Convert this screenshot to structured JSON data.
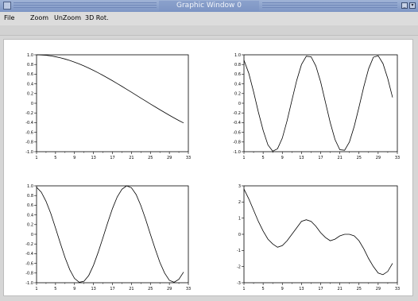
{
  "window": {
    "title": "Graphic Window 0",
    "controls": [
      "_",
      "▾",
      "✕"
    ]
  },
  "menu": {
    "items": [
      "File",
      "Zoom",
      "UnZoom",
      "3D Rot."
    ]
  },
  "chart_data": [
    {
      "type": "line",
      "xlim": [
        1,
        33
      ],
      "ylim": [
        -1.0,
        1.0
      ],
      "xticks": [
        "1",
        "5",
        "9",
        "13",
        "17",
        "21",
        "25",
        "29",
        "33"
      ],
      "yticks": [
        "1.0",
        "0.8",
        "0.6",
        "0.4",
        "0.2",
        "0",
        "-0.2",
        "-0.4",
        "-0.6",
        "-0.8",
        "-1.0"
      ],
      "x": [
        1,
        2,
        3,
        4,
        5,
        6,
        7,
        8,
        9,
        10,
        11,
        12,
        13,
        14,
        15,
        16,
        17,
        18,
        19,
        20,
        21,
        22,
        23,
        24,
        25,
        26,
        27,
        28,
        29,
        30,
        31,
        32
      ],
      "y": [
        1.0,
        0.997,
        0.99,
        0.977,
        0.96,
        0.939,
        0.913,
        0.883,
        0.849,
        0.812,
        0.77,
        0.726,
        0.678,
        0.628,
        0.576,
        0.521,
        0.465,
        0.407,
        0.348,
        0.288,
        0.228,
        0.167,
        0.106,
        0.046,
        -0.015,
        -0.074,
        -0.133,
        -0.191,
        -0.248,
        -0.303,
        -0.356,
        -0.407
      ],
      "grid": false
    },
    {
      "type": "line",
      "xlim": [
        1,
        33
      ],
      "ylim": [
        -1.0,
        1.0
      ],
      "xticks": [
        "1",
        "5",
        "9",
        "13",
        "17",
        "21",
        "25",
        "29",
        "33"
      ],
      "yticks": [
        "1.0",
        "0.8",
        "0.6",
        "0.4",
        "0.2",
        "0",
        "-0.2",
        "-0.4",
        "-0.6",
        "-0.8",
        "-1.0"
      ],
      "x": [
        1,
        2,
        3,
        4,
        5,
        6,
        7,
        8,
        9,
        10,
        11,
        12,
        13,
        14,
        15,
        16,
        17,
        18,
        19,
        20,
        21,
        22,
        23,
        24,
        25,
        26,
        27,
        28,
        29,
        30,
        31,
        32
      ],
      "y": [
        0.89,
        0.62,
        0.24,
        -0.18,
        -0.56,
        -0.86,
        -0.99,
        -0.94,
        -0.72,
        -0.36,
        0.06,
        0.47,
        0.8,
        0.97,
        0.96,
        0.77,
        0.44,
        0.02,
        -0.4,
        -0.75,
        -0.96,
        -0.97,
        -0.8,
        -0.48,
        -0.08,
        0.34,
        0.71,
        0.95,
        0.98,
        0.82,
        0.51,
        0.12
      ],
      "grid": false
    },
    {
      "type": "line",
      "xlim": [
        1,
        33
      ],
      "ylim": [
        -1.0,
        1.0
      ],
      "xticks": [
        "1",
        "5",
        "9",
        "13",
        "17",
        "21",
        "25",
        "29",
        "33"
      ],
      "yticks": [
        "1.0",
        "0.8",
        "0.6",
        "0.4",
        "0.2",
        "0",
        "-0.2",
        "-0.4",
        "-0.6",
        "-0.8",
        "-1.0"
      ],
      "x": [
        1,
        2,
        3,
        4,
        5,
        6,
        7,
        8,
        9,
        10,
        11,
        12,
        13,
        14,
        15,
        16,
        17,
        18,
        19,
        20,
        21,
        22,
        23,
        24,
        25,
        26,
        27,
        28,
        29,
        30,
        31,
        32
      ],
      "y": [
        0.97,
        0.87,
        0.68,
        0.43,
        0.13,
        -0.18,
        -0.48,
        -0.73,
        -0.91,
        -0.99,
        -0.97,
        -0.85,
        -0.64,
        -0.37,
        -0.07,
        0.24,
        0.53,
        0.77,
        0.93,
        1.0,
        0.96,
        0.82,
        0.59,
        0.31,
        0.0,
        -0.3,
        -0.58,
        -0.8,
        -0.95,
        -0.99,
        -0.93,
        -0.78
      ],
      "grid": false
    },
    {
      "type": "line",
      "xlim": [
        1,
        33
      ],
      "ylim": [
        -3,
        3
      ],
      "xticks": [
        "1",
        "5",
        "9",
        "13",
        "17",
        "21",
        "25",
        "29",
        "33"
      ],
      "yticks": [
        "3",
        "2",
        "1",
        "0",
        "-1",
        "-2",
        "-3"
      ],
      "x": [
        1,
        2,
        3,
        4,
        5,
        6,
        7,
        8,
        9,
        10,
        11,
        12,
        13,
        14,
        15,
        16,
        17,
        18,
        19,
        20,
        21,
        22,
        23,
        24,
        25,
        26,
        27,
        28,
        29,
        30,
        31,
        32
      ],
      "y": [
        2.8,
        2.2,
        1.5,
        0.8,
        0.2,
        -0.3,
        -0.6,
        -0.8,
        -0.7,
        -0.4,
        0.0,
        0.4,
        0.8,
        0.9,
        0.8,
        0.5,
        0.1,
        -0.2,
        -0.4,
        -0.3,
        -0.1,
        0.0,
        0.0,
        -0.1,
        -0.4,
        -0.9,
        -1.5,
        -2.0,
        -2.4,
        -2.5,
        -2.3,
        -1.8
      ],
      "grid": false
    }
  ]
}
